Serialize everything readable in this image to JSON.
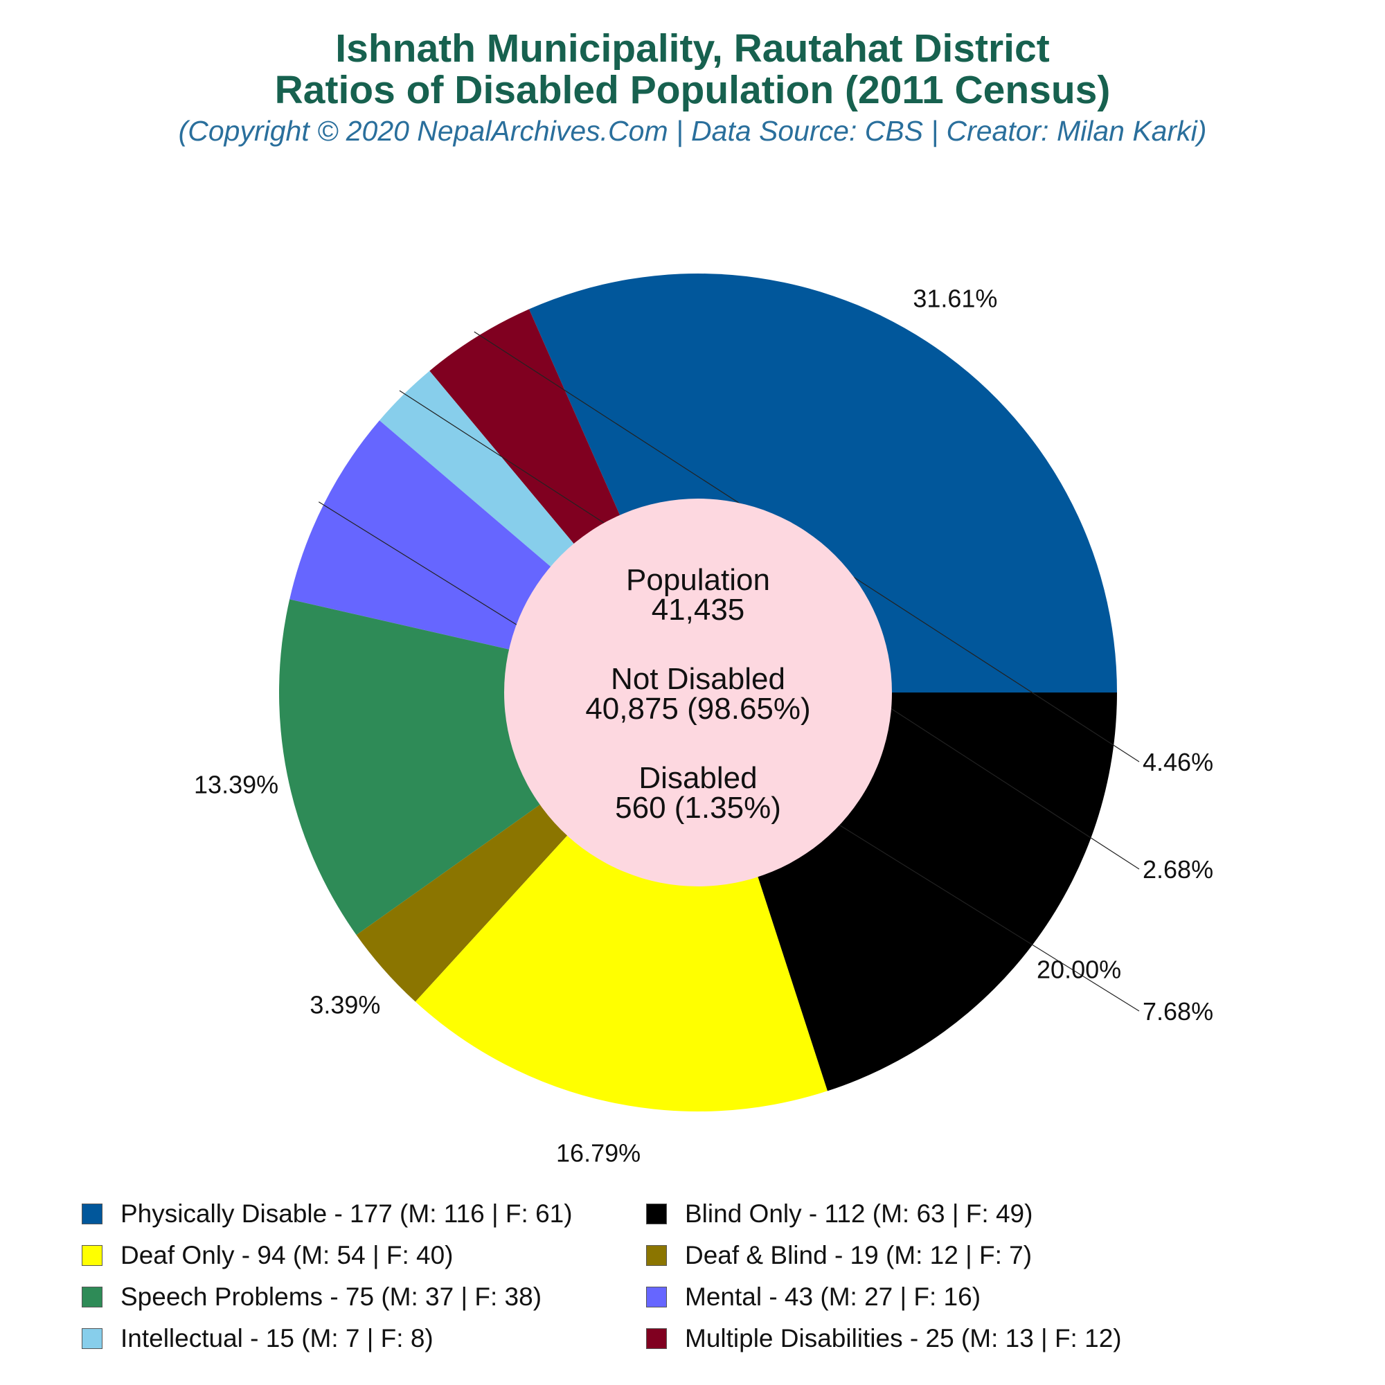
{
  "title_line1": "Ishnath Municipality, Rautahat District",
  "title_line2": "Ratios of Disabled Population (2011 Census)",
  "subtitle": "(Copyright © 2020 NepalArchives.Com | Data Source: CBS | Creator: Milan Karki)",
  "center": {
    "population_label": "Population",
    "population_value": "41,435",
    "not_disabled_label": "Not Disabled",
    "not_disabled_value": "40,875 (98.65%)",
    "disabled_label": "Disabled",
    "disabled_value": "560 (1.35%)",
    "fill_color": "#fdd8e0"
  },
  "chart_data": {
    "type": "pie",
    "slices": [
      {
        "label": "Physically Disable - 177 (M: 116 | F: 61)",
        "value": 177,
        "percent_label": "31.61%",
        "color": "#01579b"
      },
      {
        "label": "Multiple Disabilities - 25 (M: 13 | F: 12)",
        "value": 25,
        "percent_label": "4.46%",
        "color": "#800020"
      },
      {
        "label": "Intellectual - 15 (M: 7 | F: 8)",
        "value": 15,
        "percent_label": "2.68%",
        "color": "#87ceeb"
      },
      {
        "label": "Mental - 43 (M: 27 | F: 16)",
        "value": 43,
        "percent_label": "7.68%",
        "color": "#6666ff"
      },
      {
        "label": "Speech Problems - 75 (M: 37 | F: 38)",
        "value": 75,
        "percent_label": "13.39%",
        "color": "#2e8b57"
      },
      {
        "label": "Deaf & Blind - 19 (M: 12 | F: 7)",
        "value": 19,
        "percent_label": "3.39%",
        "color": "#8b7500"
      },
      {
        "label": "Deaf Only - 94 (M: 54 | F: 40)",
        "value": 94,
        "percent_label": "16.79%",
        "color": "#ffff00"
      },
      {
        "label": "Blind Only - 112 (M: 63 | F: 49)",
        "value": 112,
        "percent_label": "20.00%",
        "color": "#000000"
      }
    ],
    "legend_order": [
      "Physically Disable - 177 (M: 116 | F: 61)",
      "Blind Only - 112 (M: 63 | F: 49)",
      "Deaf Only - 94 (M: 54 | F: 40)",
      "Deaf & Blind - 19 (M: 12 | F: 7)",
      "Speech Problems - 75 (M: 37 | F: 38)",
      "Mental - 43 (M: 27 | F: 16)",
      "Intellectual - 15 (M: 7 | F: 8)",
      "Multiple Disabilities - 25 (M: 13 | F: 12)"
    ],
    "legend_placement": "bottom"
  }
}
